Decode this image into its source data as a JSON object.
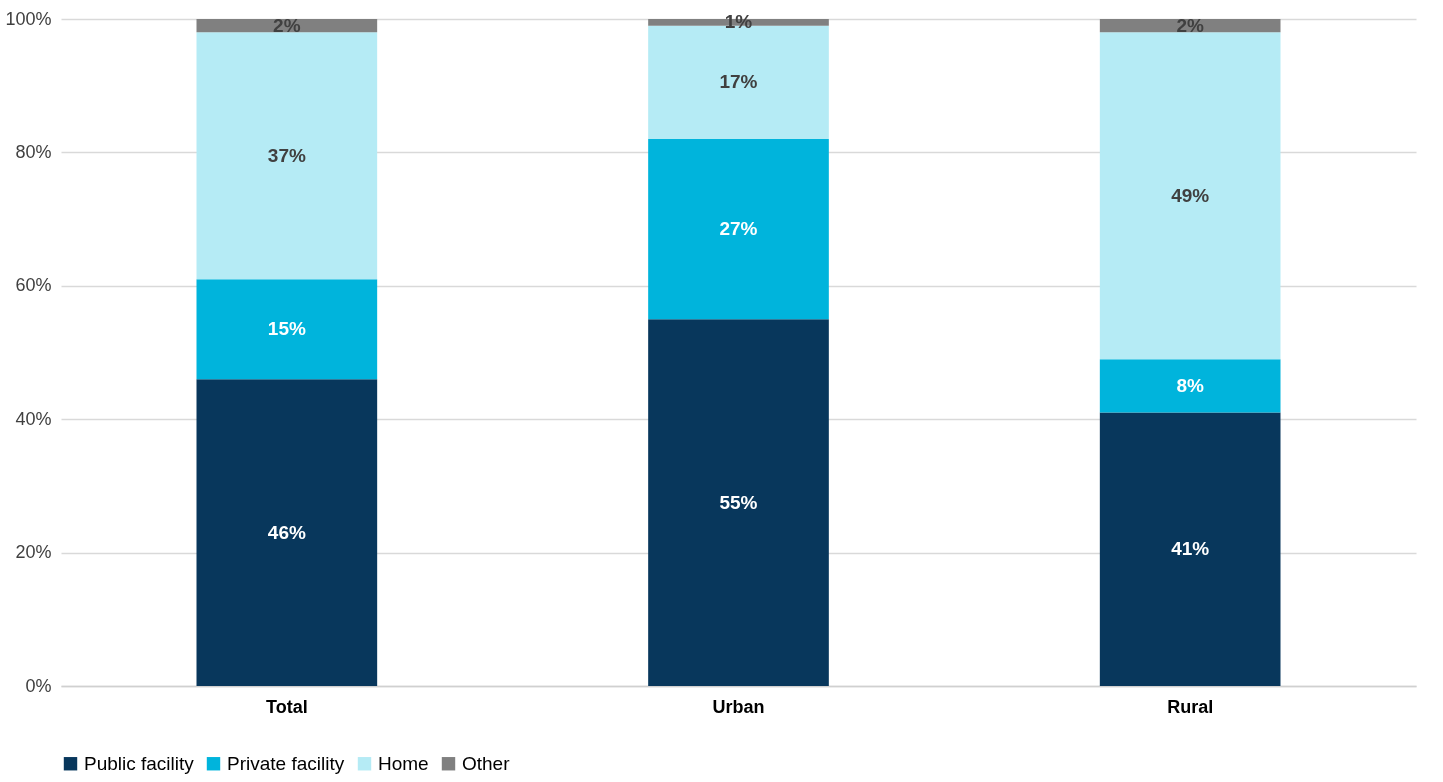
{
  "chart_data": {
    "type": "bar",
    "stacked": true,
    "categories": [
      "Total",
      "Urban",
      "Rural"
    ],
    "series": [
      {
        "name": "Public facility",
        "color": "#08375c",
        "values": [
          46,
          55,
          41
        ],
        "value_labels": [
          "46%",
          "55%",
          "41%"
        ]
      },
      {
        "name": "Private facility",
        "color": "#00b4dc",
        "values": [
          15,
          27,
          8
        ],
        "value_labels": [
          "15%",
          "27%",
          "8%"
        ]
      },
      {
        "name": "Home",
        "color": "#b5ebf5",
        "values": [
          37,
          17,
          49
        ],
        "value_labels": [
          "37%",
          "17%",
          "49%"
        ]
      },
      {
        "name": "Other",
        "color": "#808080",
        "values": [
          2,
          1,
          2
        ],
        "value_labels": [
          "2%",
          "1%",
          "2%"
        ]
      }
    ],
    "ylim": [
      0,
      100
    ],
    "yticks": [
      {
        "value": 0,
        "label": "0%"
      },
      {
        "value": 20,
        "label": "20%"
      },
      {
        "value": 40,
        "label": "40%"
      },
      {
        "value": 60,
        "label": "60%"
      },
      {
        "value": 80,
        "label": "80%"
      },
      {
        "value": 100,
        "label": "100%"
      }
    ],
    "grid": "y",
    "legend": "bottom"
  }
}
